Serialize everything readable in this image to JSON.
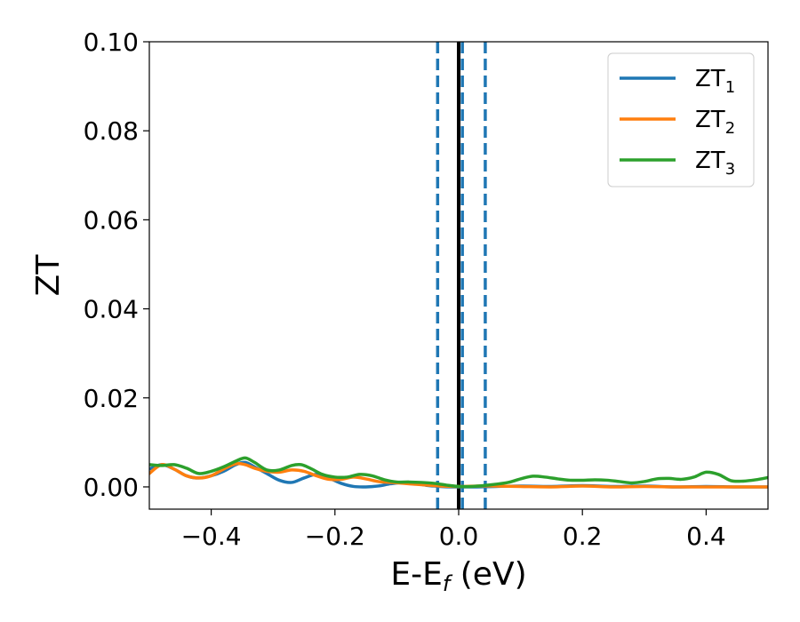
{
  "chart_data": {
    "type": "line",
    "xlabel": {
      "main": "E-E",
      "sub": "f",
      "unit": " (eV)"
    },
    "ylabel": "ZT",
    "xlim": [
      -0.5,
      0.5
    ],
    "ylim": [
      -0.005,
      0.1
    ],
    "xticks": [
      -0.4,
      -0.2,
      0.0,
      0.2,
      0.4
    ],
    "xtick_labels": [
      "−0.4",
      "−0.2",
      "0.0",
      "0.2",
      "0.4"
    ],
    "yticks": [
      0.0,
      0.02,
      0.04,
      0.06,
      0.08,
      0.1
    ],
    "ytick_labels": [
      "0.00",
      "0.02",
      "0.04",
      "0.06",
      "0.08",
      "0.10"
    ],
    "grid": false,
    "legend_position": "top-right",
    "series": [
      {
        "name": "ZT",
        "sub": "1",
        "color": "#1f77b4",
        "points": [
          [
            -0.5,
            0.004
          ],
          [
            -0.48,
            0.005
          ],
          [
            -0.46,
            0.004
          ],
          [
            -0.44,
            0.0025
          ],
          [
            -0.42,
            0.002
          ],
          [
            -0.4,
            0.0025
          ],
          [
            -0.38,
            0.0035
          ],
          [
            -0.36,
            0.005
          ],
          [
            -0.345,
            0.0055
          ],
          [
            -0.33,
            0.0045
          ],
          [
            -0.31,
            0.003
          ],
          [
            -0.29,
            0.0015
          ],
          [
            -0.27,
            0.001
          ],
          [
            -0.25,
            0.002
          ],
          [
            -0.23,
            0.0028
          ],
          [
            -0.21,
            0.002
          ],
          [
            -0.19,
            0.0008
          ],
          [
            -0.17,
            0.0001
          ],
          [
            -0.15,
            0.0
          ],
          [
            -0.13,
            0.0002
          ],
          [
            -0.11,
            0.0007
          ],
          [
            -0.09,
            0.001
          ],
          [
            -0.07,
            0.0008
          ],
          [
            -0.05,
            0.0003
          ],
          [
            -0.03,
            0.0001
          ],
          [
            -0.01,
            0.0
          ],
          [
            0.01,
            0.0
          ],
          [
            0.03,
            0.0
          ],
          [
            0.06,
            0.0001
          ],
          [
            0.1,
            0.0002
          ],
          [
            0.15,
            0.0001
          ],
          [
            0.2,
            0.0003
          ],
          [
            0.25,
            0.0001
          ],
          [
            0.3,
            0.0002
          ],
          [
            0.35,
            0.0
          ],
          [
            0.4,
            0.0001
          ],
          [
            0.45,
            0.0
          ],
          [
            0.5,
            0.0
          ]
        ]
      },
      {
        "name": "ZT",
        "sub": "2",
        "color": "#ff7f0e",
        "points": [
          [
            -0.5,
            0.003
          ],
          [
            -0.48,
            0.005
          ],
          [
            -0.46,
            0.004
          ],
          [
            -0.44,
            0.0025
          ],
          [
            -0.42,
            0.002
          ],
          [
            -0.4,
            0.0025
          ],
          [
            -0.38,
            0.004
          ],
          [
            -0.36,
            0.0052
          ],
          [
            -0.345,
            0.005
          ],
          [
            -0.33,
            0.0042
          ],
          [
            -0.31,
            0.0035
          ],
          [
            -0.29,
            0.0033
          ],
          [
            -0.27,
            0.0038
          ],
          [
            -0.25,
            0.0035
          ],
          [
            -0.23,
            0.0025
          ],
          [
            -0.21,
            0.0017
          ],
          [
            -0.19,
            0.0017
          ],
          [
            -0.17,
            0.0022
          ],
          [
            -0.15,
            0.0018
          ],
          [
            -0.13,
            0.0012
          ],
          [
            -0.11,
            0.001
          ],
          [
            -0.09,
            0.0008
          ],
          [
            -0.07,
            0.0006
          ],
          [
            -0.05,
            0.0004
          ],
          [
            -0.03,
            0.0002
          ],
          [
            0.0,
            0.0001
          ],
          [
            0.03,
            0.0002
          ],
          [
            0.06,
            0.0002
          ],
          [
            0.1,
            0.0001
          ],
          [
            0.15,
            0.0
          ],
          [
            0.2,
            0.0002
          ],
          [
            0.25,
            0.0
          ],
          [
            0.3,
            0.0001
          ],
          [
            0.35,
            0.0
          ],
          [
            0.4,
            0.0
          ],
          [
            0.45,
            0.0
          ],
          [
            0.5,
            0.0
          ]
        ]
      },
      {
        "name": "ZT",
        "sub": "3",
        "color": "#2ca02c",
        "points": [
          [
            -0.5,
            0.005
          ],
          [
            -0.48,
            0.0048
          ],
          [
            -0.46,
            0.005
          ],
          [
            -0.44,
            0.0042
          ],
          [
            -0.42,
            0.003
          ],
          [
            -0.4,
            0.0035
          ],
          [
            -0.38,
            0.0045
          ],
          [
            -0.36,
            0.0058
          ],
          [
            -0.345,
            0.0065
          ],
          [
            -0.33,
            0.0055
          ],
          [
            -0.31,
            0.0038
          ],
          [
            -0.29,
            0.0038
          ],
          [
            -0.27,
            0.0048
          ],
          [
            -0.255,
            0.005
          ],
          [
            -0.24,
            0.0042
          ],
          [
            -0.22,
            0.0028
          ],
          [
            -0.2,
            0.0022
          ],
          [
            -0.18,
            0.0022
          ],
          [
            -0.16,
            0.0028
          ],
          [
            -0.14,
            0.0025
          ],
          [
            -0.12,
            0.0016
          ],
          [
            -0.1,
            0.0011
          ],
          [
            -0.08,
            0.0011
          ],
          [
            -0.06,
            0.001
          ],
          [
            -0.04,
            0.0008
          ],
          [
            -0.02,
            0.0004
          ],
          [
            0.0,
            0.0001
          ],
          [
            0.02,
            0.0001
          ],
          [
            0.04,
            0.0003
          ],
          [
            0.06,
            0.0006
          ],
          [
            0.08,
            0.001
          ],
          [
            0.1,
            0.0018
          ],
          [
            0.12,
            0.0024
          ],
          [
            0.14,
            0.0022
          ],
          [
            0.16,
            0.0018
          ],
          [
            0.18,
            0.0015
          ],
          [
            0.2,
            0.0015
          ],
          [
            0.22,
            0.0016
          ],
          [
            0.24,
            0.0015
          ],
          [
            0.26,
            0.0012
          ],
          [
            0.28,
            0.0009
          ],
          [
            0.3,
            0.0012
          ],
          [
            0.32,
            0.0018
          ],
          [
            0.34,
            0.0019
          ],
          [
            0.36,
            0.0017
          ],
          [
            0.38,
            0.0022
          ],
          [
            0.4,
            0.0033
          ],
          [
            0.42,
            0.0028
          ],
          [
            0.44,
            0.0014
          ],
          [
            0.46,
            0.0013
          ],
          [
            0.48,
            0.0016
          ],
          [
            0.5,
            0.0021
          ]
        ]
      }
    ],
    "vlines": [
      {
        "x": 0.0,
        "style": "solid",
        "color": "#000000"
      },
      {
        "x": -0.034,
        "style": "dashed",
        "color": "#1f77b4"
      },
      {
        "x": 0.006,
        "style": "dashed",
        "color": "#1f77b4"
      },
      {
        "x": 0.043,
        "style": "dashed",
        "color": "#1f77b4"
      }
    ]
  }
}
